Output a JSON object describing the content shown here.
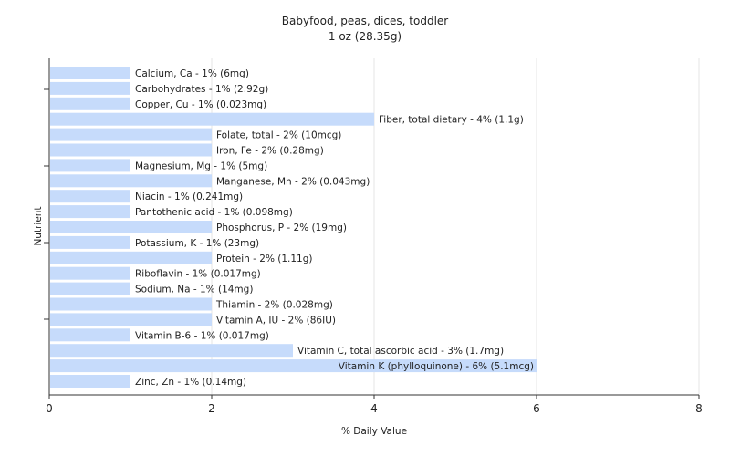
{
  "chart_data": {
    "type": "bar",
    "orientation": "horizontal",
    "title": "Babyfood, peas, dices, toddler",
    "subtitle": "1 oz (28.35g)",
    "xlabel": "% Daily Value",
    "ylabel": "Nutrient",
    "xlim": [
      0,
      8
    ],
    "xticks": [
      "0",
      "2",
      "4",
      "6",
      "8"
    ],
    "grid": true,
    "bar_color": "#c6dbfb",
    "categories": [
      "Calcium, Ca",
      "Carbohydrates",
      "Copper, Cu",
      "Fiber, total dietary",
      "Folate, total",
      "Iron, Fe",
      "Magnesium, Mg",
      "Manganese, Mn",
      "Niacin",
      "Pantothenic acid",
      "Phosphorus, P",
      "Potassium, K",
      "Protein",
      "Riboflavin",
      "Sodium, Na",
      "Thiamin",
      "Vitamin A, IU",
      "Vitamin B-6",
      "Vitamin C, total ascorbic acid",
      "Vitamin K (phylloquinone)",
      "Zinc, Zn"
    ],
    "values": [
      1,
      1,
      1,
      4,
      2,
      2,
      1,
      2,
      1,
      1,
      2,
      1,
      2,
      1,
      1,
      2,
      2,
      1,
      3,
      6,
      1
    ],
    "labels": [
      "Calcium, Ca - 1% (6mg)",
      "Carbohydrates - 1% (2.92g)",
      "Copper, Cu - 1% (0.023mg)",
      "Fiber, total dietary - 4% (1.1g)",
      "Folate, total - 2% (10mcg)",
      "Iron, Fe - 2% (0.28mg)",
      "Magnesium, Mg - 1% (5mg)",
      "Manganese, Mn - 2% (0.043mg)",
      "Niacin - 1% (0.241mg)",
      "Pantothenic acid - 1% (0.098mg)",
      "Phosphorus, P - 2% (19mg)",
      "Potassium, K - 1% (23mg)",
      "Protein - 2% (1.11g)",
      "Riboflavin - 1% (0.017mg)",
      "Sodium, Na - 1% (14mg)",
      "Thiamin - 2% (0.028mg)",
      "Vitamin A, IU - 2% (86IU)",
      "Vitamin B-6 - 1% (0.017mg)",
      "Vitamin C, total ascorbic acid - 3% (1.7mg)",
      "Vitamin K (phylloquinone) - 6% (5.1mcg)",
      "Zinc, Zn - 1% (0.14mg)"
    ]
  }
}
